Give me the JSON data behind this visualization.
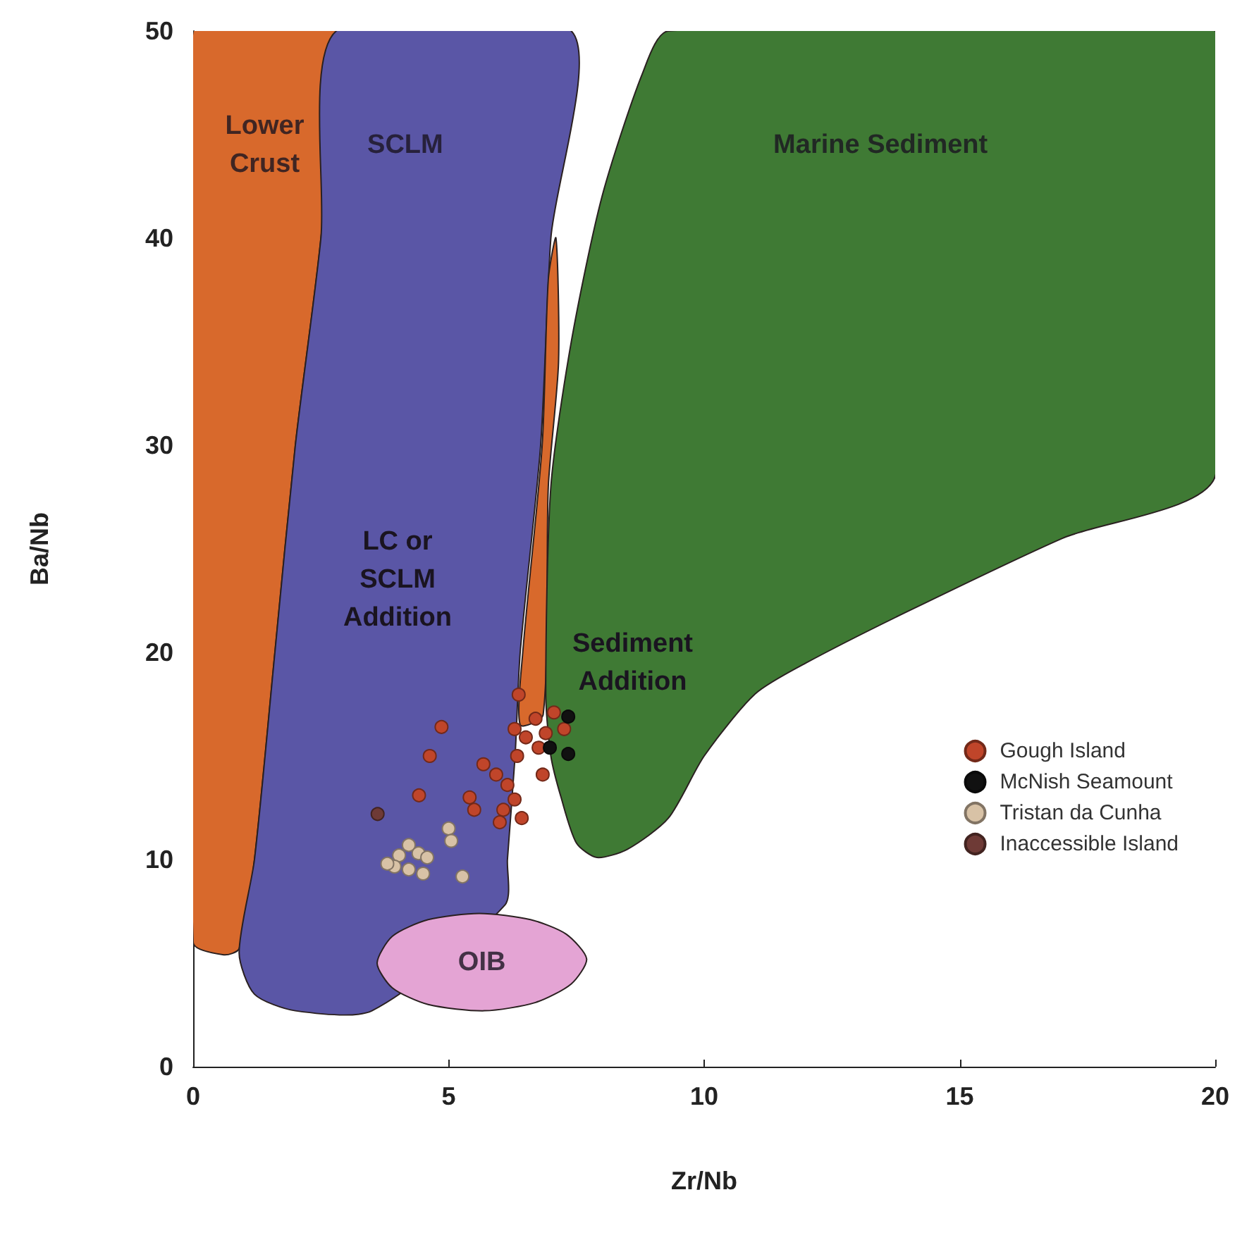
{
  "chart_data": {
    "type": "scatter",
    "xlabel": "Zr/Nb",
    "ylabel": "Ba/Nb",
    "xlim": [
      0,
      20
    ],
    "ylim": [
      0,
      50
    ],
    "xticks": [
      0,
      5,
      10,
      15,
      20
    ],
    "yticks": [
      0,
      10,
      20,
      30,
      40,
      50
    ],
    "grid": false,
    "legend": "right",
    "series": [
      {
        "type": "area",
        "name": "Lower\nCrust",
        "color": "#d8692c",
        "x": [
          0,
          0,
          2.8,
          2.5,
          2.0,
          1.6,
          1.2,
          0.9,
          0.6
        ],
        "values": [
          6,
          50,
          50,
          40,
          30,
          20,
          10,
          5.7,
          5.4
        ]
      },
      {
        "type": "area",
        "name": "SCLM",
        "color": "#5a56a6",
        "x": [
          2.8,
          7.4,
          7.0,
          6.8,
          6.4,
          6.3,
          6.15,
          6.1,
          3.5,
          2.0,
          1.2,
          0.9,
          1.2,
          1.6,
          2.0,
          2.5
        ],
        "values": [
          50,
          50,
          40,
          30,
          20,
          15,
          10,
          7.8,
          2.7,
          2.7,
          3.5,
          5.5,
          10,
          20,
          30,
          40
        ]
      },
      {
        "type": "area",
        "color": "#d8692c",
        "x": [
          7.1,
          6.95,
          6.83,
          6.45,
          6.4,
          6.85,
          6.95,
          7.15
        ],
        "values": [
          40,
          38,
          30,
          20,
          16.5,
          17,
          28,
          34
        ]
      },
      {
        "type": "area",
        "name": "Marine Sediment",
        "color": "#3f7a34",
        "x": [
          6.9,
          7.0,
          7.4,
          8.0,
          8.8,
          9.3,
          20,
          20,
          17,
          14,
          12,
          11,
          10,
          9.3,
          8.5,
          7.9,
          7.5,
          7.2,
          7.0
        ],
        "values": [
          18,
          28,
          35,
          42,
          48,
          50,
          50,
          28.5,
          25.5,
          22,
          19.5,
          18,
          15,
          12,
          10.5,
          10.1,
          10.8,
          13,
          15
        ]
      },
      {
        "type": "area",
        "name": "OIB",
        "color": "#e4a4d4",
        "x": [
          3.6,
          3.9,
          4.6,
          5.6,
          6.6,
          7.3,
          7.7,
          7.4,
          6.7,
          5.7,
          4.6,
          3.9
        ],
        "values": [
          5.0,
          6.3,
          7.1,
          7.4,
          7.1,
          6.4,
          5.2,
          4.0,
          3.1,
          2.7,
          3.0,
          3.8
        ]
      },
      {
        "name": "Gough Island",
        "marker": "circle",
        "color": "#c0452a",
        "x": [
          6.37,
          4.86,
          4.63,
          4.42,
          5.41,
          5.5,
          5.68,
          5.93,
          6.15,
          6.34,
          6.29,
          6.51,
          6.7,
          6.9,
          7.06,
          7.26,
          6.76,
          6.84,
          6.07,
          6.43,
          6.0,
          6.29
        ],
        "values": [
          17.96,
          16.4,
          15.0,
          13.1,
          13.0,
          12.4,
          14.6,
          14.1,
          13.6,
          15.0,
          16.3,
          15.9,
          16.8,
          16.1,
          17.1,
          16.3,
          15.4,
          14.1,
          12.4,
          12.0,
          11.8,
          12.9
        ]
      },
      {
        "name": "McNish Seamount",
        "marker": "circle",
        "color": "#111111",
        "x": [
          7.34,
          6.98,
          7.34
        ],
        "values": [
          16.9,
          15.4,
          15.1
        ]
      },
      {
        "name": "Tristan da Cunha",
        "marker": "circle",
        "color": "#d8c2a6",
        "x": [
          4.22,
          4.41,
          4.03,
          4.58,
          3.94,
          4.22,
          4.5,
          5.0,
          5.05,
          5.27,
          3.8
        ],
        "values": [
          10.7,
          10.3,
          10.2,
          10.1,
          9.66,
          9.52,
          9.32,
          11.5,
          10.9,
          9.18,
          9.8
        ]
      },
      {
        "name": "Inaccessible Island",
        "marker": "circle",
        "color": "#6e3a36",
        "x": [
          3.61
        ],
        "values": [
          12.2
        ]
      }
    ],
    "annotations": [
      "LC or\nSCLM\nAddition",
      "Sediment\nAddition"
    ]
  }
}
